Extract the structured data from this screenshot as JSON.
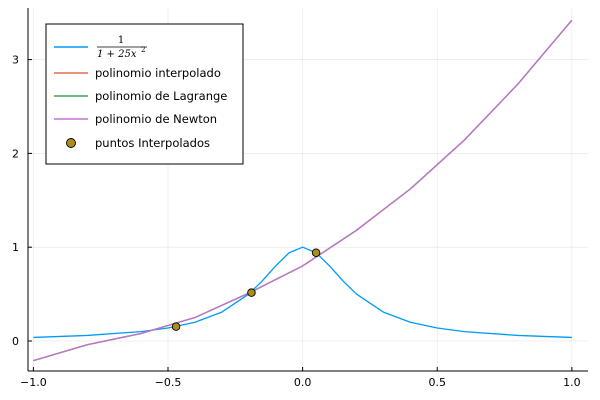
{
  "chart_data": {
    "type": "line",
    "title": "",
    "xlabel": "",
    "ylabel": "",
    "xlim": [
      -1.02,
      1.06
    ],
    "ylim": [
      -0.32,
      3.55
    ],
    "xticks": [
      {
        "value": -1.0,
        "label": "−1.0"
      },
      {
        "value": -0.5,
        "label": "−0.5"
      },
      {
        "value": 0.0,
        "label": "0.0"
      },
      {
        "value": 0.5,
        "label": "0.5"
      },
      {
        "value": 1.0,
        "label": "1.0"
      }
    ],
    "yticks": [
      {
        "value": 0,
        "label": "0"
      },
      {
        "value": 1,
        "label": "1"
      },
      {
        "value": 2,
        "label": "2"
      },
      {
        "value": 3,
        "label": "3"
      }
    ],
    "grid": true,
    "legend_position": "top-left",
    "series": [
      {
        "name": "1/(1 + 25x²)",
        "name_numerator": "1",
        "name_denominator": "1 + 25x",
        "name_exponent": "2",
        "kind": "line",
        "color": "#009af9",
        "x": [
          -1.0,
          -0.8,
          -0.6,
          -0.5,
          -0.4,
          -0.3,
          -0.2,
          -0.15,
          -0.1,
          -0.05,
          0.0,
          0.05,
          0.1,
          0.15,
          0.2,
          0.3,
          0.4,
          0.5,
          0.6,
          0.8,
          1.0
        ],
        "y": [
          0.038,
          0.059,
          0.1,
          0.138,
          0.2,
          0.308,
          0.5,
          0.64,
          0.8,
          0.941,
          1.0,
          0.941,
          0.8,
          0.64,
          0.5,
          0.308,
          0.2,
          0.138,
          0.1,
          0.059,
          0.038
        ]
      },
      {
        "name": "polinomio interpolado",
        "kind": "line",
        "color": "#e26f46",
        "x": [
          -1.0,
          -0.8,
          -0.6,
          -0.4,
          -0.2,
          0.0,
          0.2,
          0.4,
          0.6,
          0.8,
          1.0
        ],
        "y": [
          -0.21,
          -0.04,
          0.08,
          0.25,
          0.51,
          0.8,
          1.18,
          1.62,
          2.14,
          2.74,
          3.42
        ]
      },
      {
        "name": "polinomio de Lagrange",
        "kind": "line",
        "color": "#3da44d",
        "x": [
          -1.0,
          -0.8,
          -0.6,
          -0.4,
          -0.2,
          0.0,
          0.2,
          0.4,
          0.6,
          0.8,
          1.0
        ],
        "y": [
          -0.21,
          -0.04,
          0.08,
          0.25,
          0.51,
          0.8,
          1.18,
          1.62,
          2.14,
          2.74,
          3.42
        ]
      },
      {
        "name": "polinomio de Newton",
        "kind": "line",
        "color": "#c271d2",
        "x": [
          -1.0,
          -0.8,
          -0.6,
          -0.4,
          -0.2,
          0.0,
          0.2,
          0.4,
          0.6,
          0.8,
          1.0
        ],
        "y": [
          -0.21,
          -0.04,
          0.08,
          0.25,
          0.51,
          0.8,
          1.18,
          1.62,
          2.14,
          2.74,
          3.42
        ]
      },
      {
        "name": "puntos Interpolados",
        "kind": "scatter",
        "color": "#ac8d18",
        "x": [
          -0.47,
          -0.19,
          0.05
        ],
        "y": [
          0.153,
          0.515,
          0.941
        ]
      }
    ]
  }
}
